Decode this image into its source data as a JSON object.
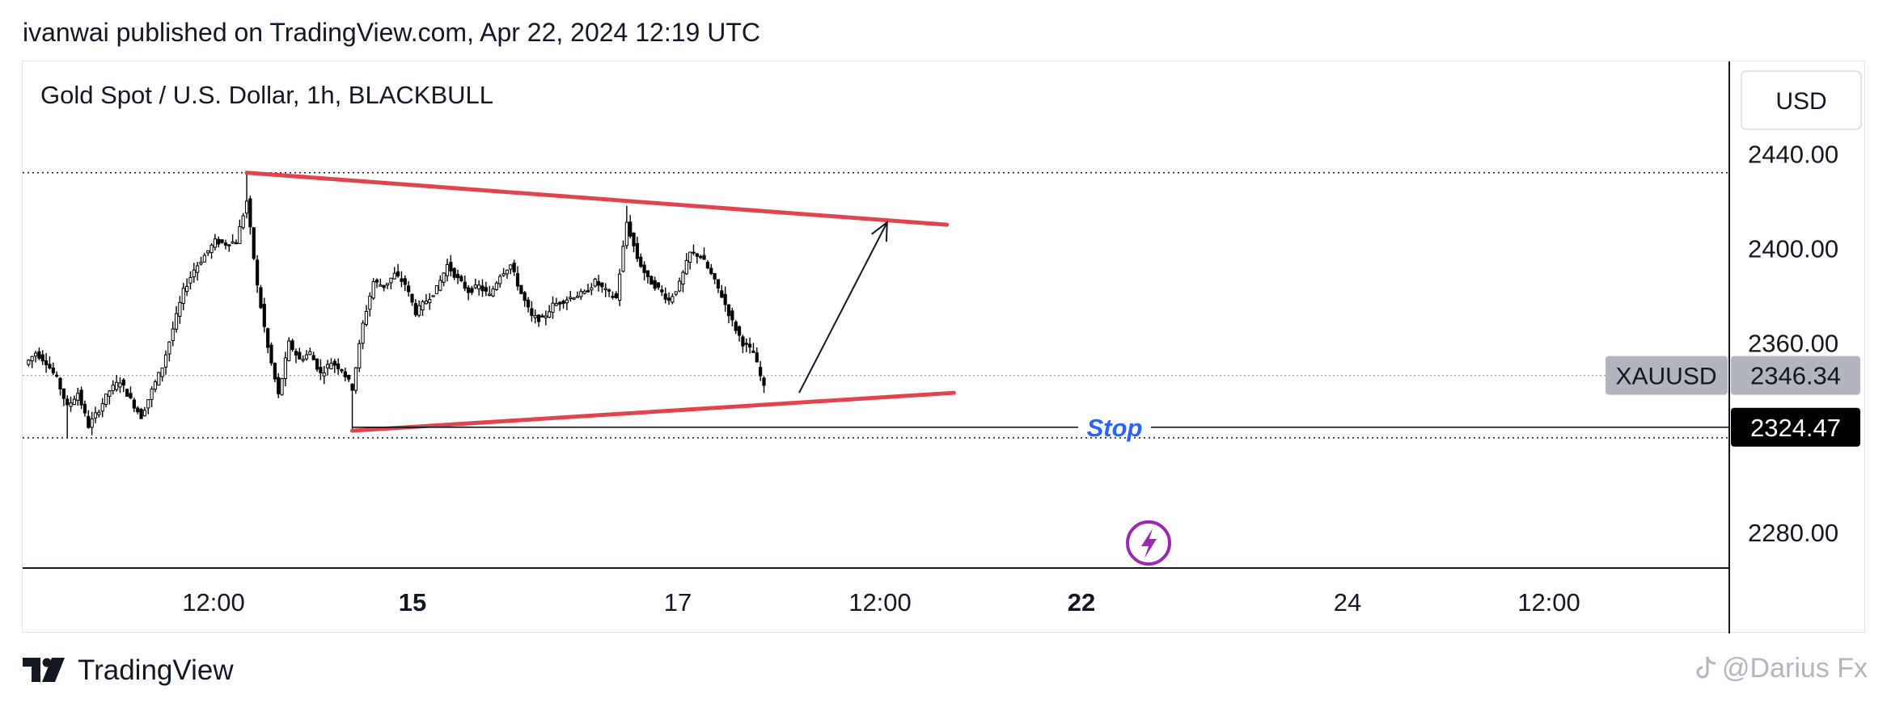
{
  "header": {
    "publish_line": "ivanwai published on TradingView.com, Apr 22, 2024 12:19 UTC"
  },
  "footer": {
    "brand": "TradingView",
    "logo_icon": "tradingview-logo-icon",
    "watermark": "@Darius Fx",
    "watermark_icon": "tiktok-icon"
  },
  "chart_data": {
    "type": "candlestick",
    "title": "Gold Spot / U.S. Dollar, 1h, BLACKBULL",
    "currency_button": "USD",
    "y_ticks": [
      "2440.00",
      "2400.00",
      "2360.00",
      "2280.00"
    ],
    "y_tick_values": [
      2440,
      2400,
      2360,
      2280
    ],
    "ylim": [
      2265,
      2479
    ],
    "x_ticks": [
      {
        "label": "12:00",
        "bold": false
      },
      {
        "label": "15",
        "bold": true
      },
      {
        "label": "17",
        "bold": false
      },
      {
        "label": "12:00",
        "bold": false
      },
      {
        "label": "22",
        "bold": true
      },
      {
        "label": "24",
        "bold": false
      },
      {
        "label": "12:00",
        "bold": false
      }
    ],
    "symbol_label": "XAUUSD",
    "last_price": "2346.34",
    "last_price_value": 2346.34,
    "stop_price": "2324.47",
    "stop_price_value": 2324.47,
    "stop_label": "Stop",
    "high_level_value": 2432,
    "low_level_value": 2320,
    "close_path": [
      [
        0,
        2351
      ],
      [
        3,
        2356
      ],
      [
        6,
        2352
      ],
      [
        9,
        2345
      ],
      [
        12,
        2333
      ],
      [
        15,
        2339
      ],
      [
        18,
        2325
      ],
      [
        21,
        2332
      ],
      [
        24,
        2340
      ],
      [
        27,
        2344
      ],
      [
        30,
        2336
      ],
      [
        33,
        2329
      ],
      [
        36,
        2340
      ],
      [
        39,
        2350
      ],
      [
        42,
        2366
      ],
      [
        45,
        2382
      ],
      [
        48,
        2391
      ],
      [
        51,
        2397
      ],
      [
        54,
        2403
      ],
      [
        57,
        2402
      ],
      [
        60,
        2403
      ],
      [
        63,
        2420
      ],
      [
        66,
        2384
      ],
      [
        69,
        2358
      ],
      [
        72,
        2338
      ],
      [
        75,
        2360
      ],
      [
        78,
        2353
      ],
      [
        81,
        2356
      ],
      [
        84,
        2347
      ],
      [
        87,
        2352
      ],
      [
        90,
        2349
      ],
      [
        93,
        2341
      ],
      [
        96,
        2368
      ],
      [
        99,
        2386
      ],
      [
        102,
        2384
      ],
      [
        105,
        2389
      ],
      [
        108,
        2385
      ],
      [
        111,
        2373
      ],
      [
        114,
        2378
      ],
      [
        117,
        2383
      ],
      [
        120,
        2393
      ],
      [
        123,
        2387
      ],
      [
        126,
        2382
      ],
      [
        129,
        2384
      ],
      [
        132,
        2380
      ],
      [
        135,
        2389
      ],
      [
        138,
        2393
      ],
      [
        141,
        2381
      ],
      [
        144,
        2371
      ],
      [
        147,
        2370
      ],
      [
        150,
        2376
      ],
      [
        153,
        2378
      ],
      [
        156,
        2380
      ],
      [
        159,
        2381
      ],
      [
        162,
        2386
      ],
      [
        165,
        2382
      ],
      [
        168,
        2379
      ],
      [
        171,
        2411
      ],
      [
        174,
        2396
      ],
      [
        177,
        2387
      ],
      [
        180,
        2383
      ],
      [
        183,
        2378
      ],
      [
        186,
        2385
      ],
      [
        189,
        2398
      ],
      [
        192,
        2397
      ],
      [
        195,
        2389
      ],
      [
        198,
        2380
      ],
      [
        201,
        2369
      ],
      [
        204,
        2360
      ],
      [
        207,
        2356
      ],
      [
        210,
        2341
      ]
    ],
    "lines": {
      "upper_trendline": {
        "from": [
          63,
          2432
        ],
        "to": [
          262,
          2410
        ],
        "color": "#e2444e"
      },
      "lower_trendline": {
        "from": [
          93,
          2323
        ],
        "to": [
          264,
          2339
        ],
        "color": "#e2444e"
      },
      "projection_arrow": {
        "from": [
          220,
          2339
        ],
        "to": [
          245,
          2411
        ],
        "color": "#131722"
      }
    },
    "event_icon": "lightning-icon",
    "grid": false,
    "colors": {
      "up": "#ffffff",
      "down": "#000000",
      "trendline": "#e2444e",
      "stop_text": "#2962ff",
      "event": "#9c27b0",
      "symbol_badge": "#b2b5be",
      "stop_badge": "#000000"
    }
  }
}
